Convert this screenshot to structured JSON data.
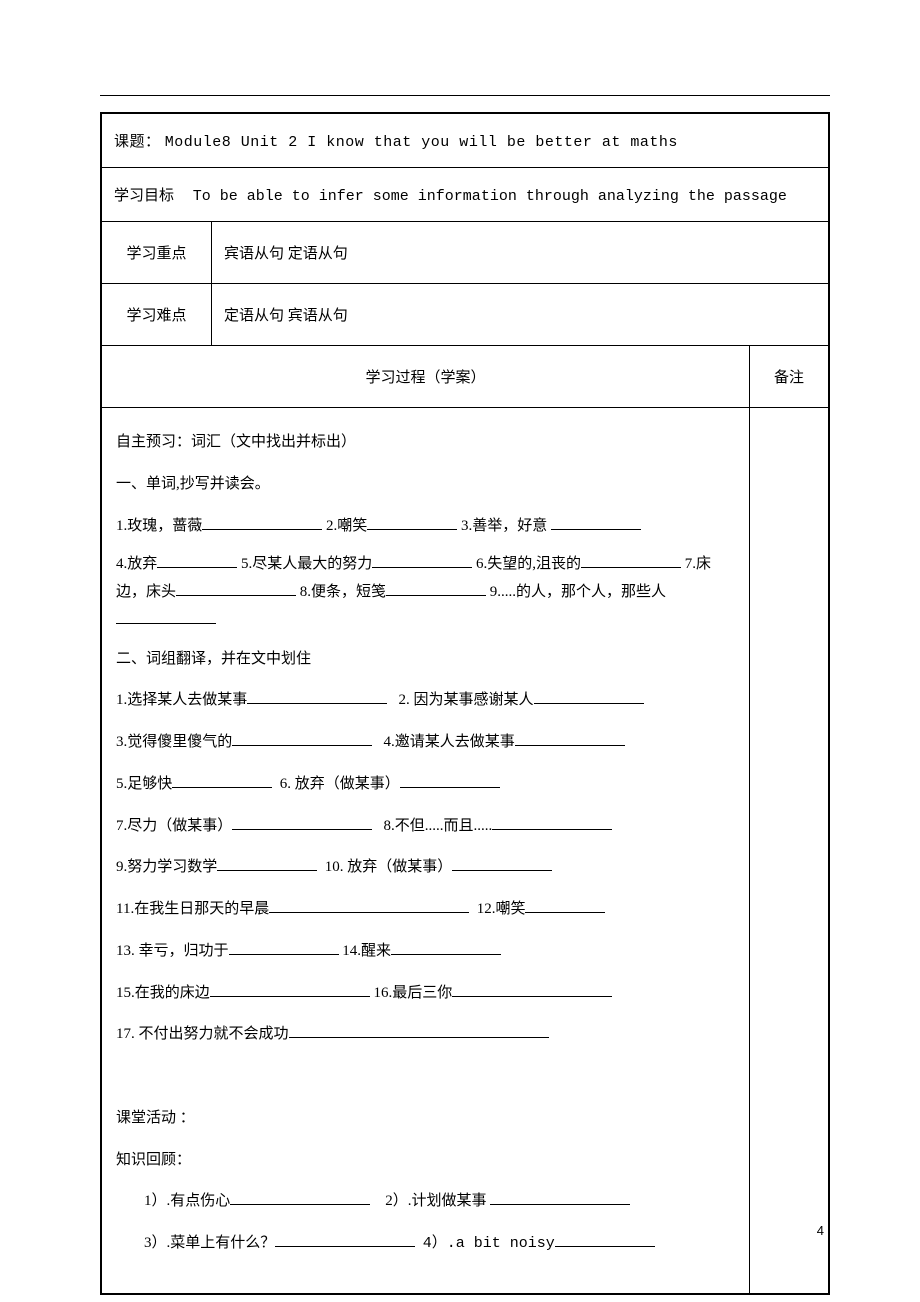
{
  "header": {
    "topic_label": "课题：",
    "topic_value": "Module8  Unit 2 I know that you will be better at maths",
    "goal_label": "学习目标",
    "goal_value": "To be able to infer some information through analyzing the passage",
    "focus_label": "学习重点",
    "focus_value": "宾语从句 定语从句",
    "difficulty_label": "学习难点",
    "difficulty_value": "定语从句 宾语从句",
    "process_label": "学习过程（学案）",
    "notes_label": "备注"
  },
  "content": {
    "preview_title": "自主预习：词汇（文中找出并标出）",
    "section1_title": "一、单词,抄写并读会。",
    "words": {
      "l1a": "1.玫瑰，蔷薇",
      "l1b": "2.嘲笑",
      "l1c": "3.善举，好意",
      "l2a": "4.放弃",
      "l2b": "5.尽某人最大的努力",
      "l2c": "6.失望的,沮丧的",
      "l2d": "7.床边，床头",
      "l2e": "8.便条，短笺",
      "l2f": "9.....的人，那个人，那些人"
    },
    "section2_title": "二、词组翻译，并在文中划住",
    "phrases": {
      "p1": "1.选择某人去做某事",
      "p2": "2. 因为某事感谢某人",
      "p3": "3.觉得傻里傻气的",
      "p4": "4.邀请某人去做某事",
      "p5": "5.足够快",
      "p6": "6. 放弃（做某事）",
      "p7": "7.尽力（做某事）",
      "p8": "8.不但.....而且.....",
      "p9": "9.努力学习数学",
      "p10": "10. 放弃（做某事）",
      "p11": "11.在我生日那天的早晨",
      "p12": "12.嘲笑",
      "p13": "13. 幸亏，归功于",
      "p14": "14.醒来",
      "p15": "15.在我的床边",
      "p16": "16.最后三你",
      "p17": "17. 不付出努力就不会成功"
    },
    "class_activity": "课堂活动 ：",
    "review_title": "知识回顾：",
    "review": {
      "r1": "1）.有点伤心",
      "r2": "2）.计划做某事",
      "r3": "3）.菜单上有什么？",
      "r4": "4）.a bit noisy"
    }
  },
  "page_number": "4"
}
